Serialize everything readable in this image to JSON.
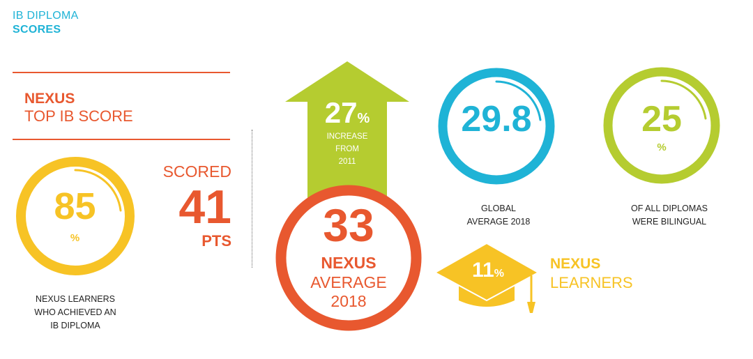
{
  "header": {
    "line1": "IB DIPLOMA",
    "line2": "SCORES"
  },
  "top_score": {
    "nexus": "NEXUS",
    "title": "TOP IB SCORE",
    "scored": "SCORED",
    "points": "41",
    "pts_label": "PTS"
  },
  "diploma": {
    "value": "85",
    "symbol": "%",
    "caption1": "NEXUS LEARNERS",
    "caption2": "WHO ACHIEVED AN",
    "caption3": "IB DIPLOMA",
    "fraction": 0.85
  },
  "increase": {
    "value": "27",
    "symbol": "%",
    "line1": "INCREASE",
    "line2": "FROM",
    "line3": "2011"
  },
  "average": {
    "value": "33",
    "nexus": "NEXUS",
    "line1": "AVERAGE",
    "line2": "2018"
  },
  "global": {
    "value": "29.8",
    "caption1": "GLOBAL",
    "caption2": "AVERAGE 2018"
  },
  "bilingual": {
    "value": "25",
    "symbol": "%",
    "caption1": "OF ALL DIPLOMAS",
    "caption2": "WERE BILINGUAL",
    "fraction": 0.25
  },
  "learners": {
    "value": "11",
    "symbol": "%",
    "nexus": "NEXUS",
    "label": "LEARNERS"
  },
  "colors": {
    "cyan": "#1fb3d6",
    "orange": "#e8582f",
    "yellow": "#f7c325",
    "lime": "#b5cc30",
    "white": "#ffffff"
  },
  "icons": {
    "arrow": "up-arrow-icon",
    "cap": "graduation-cap-icon"
  }
}
